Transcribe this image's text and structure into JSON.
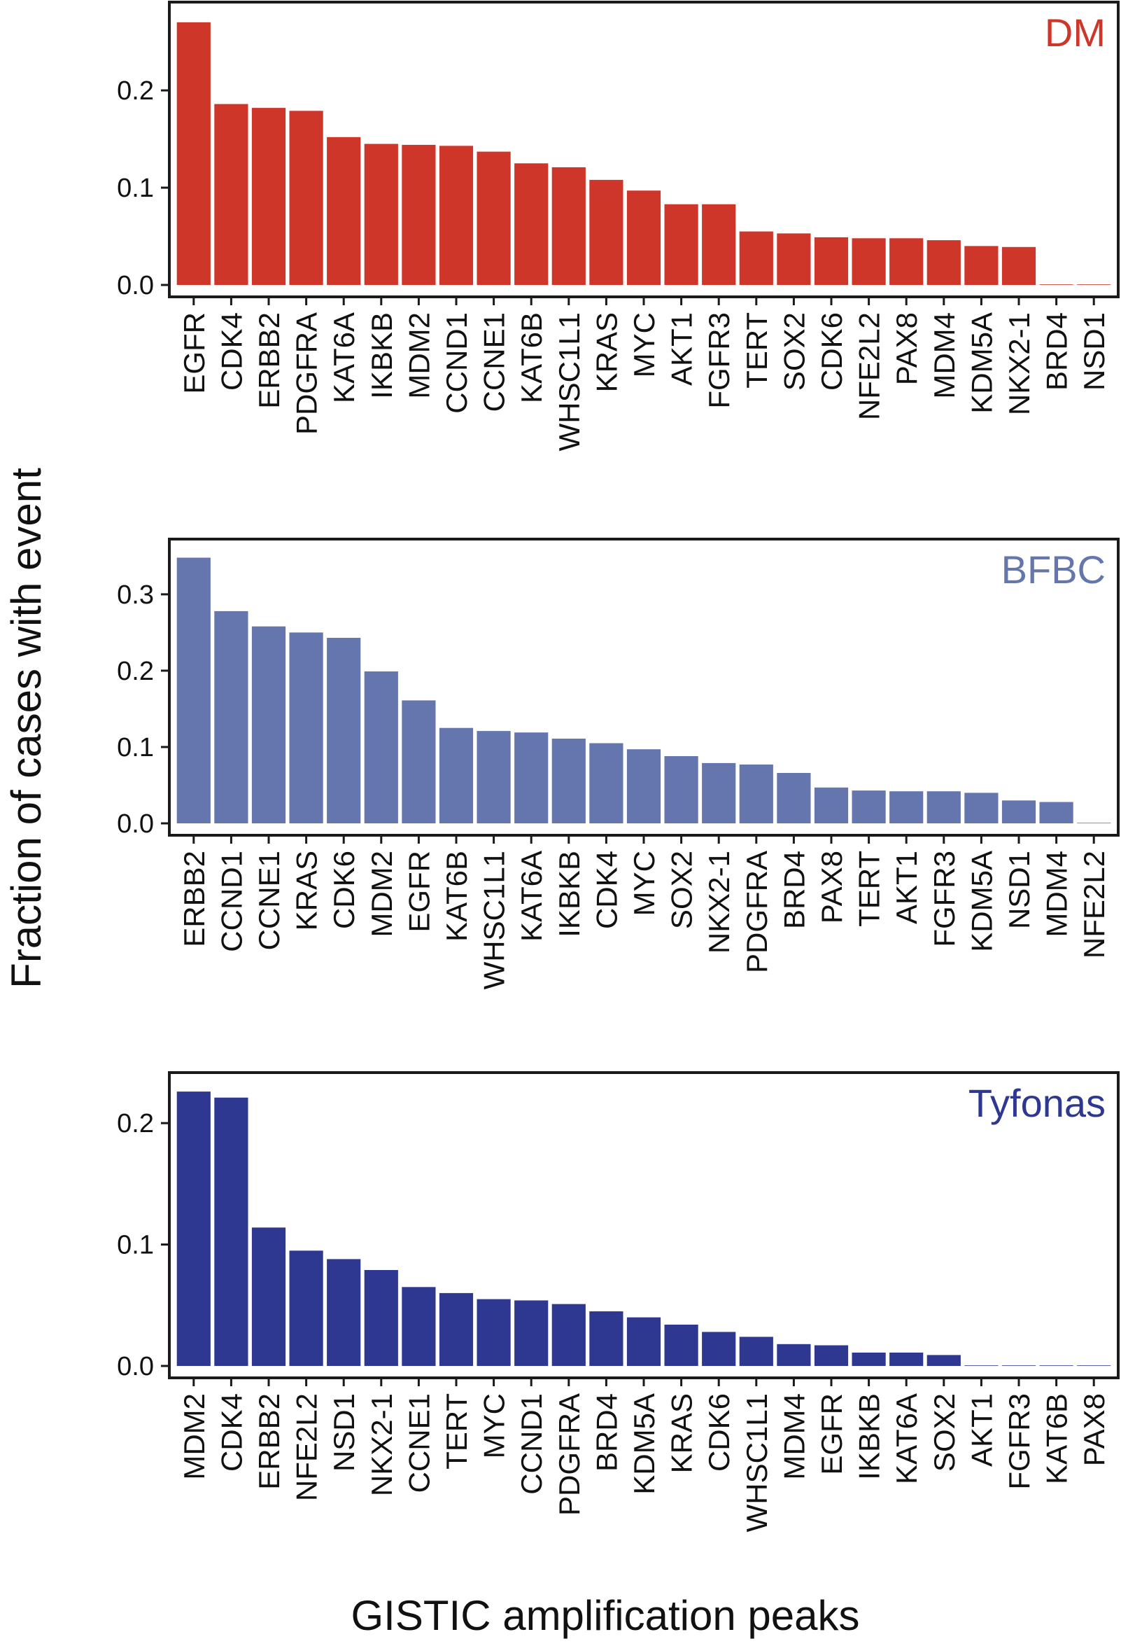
{
  "figure": {
    "ylabel": "Fraction of cases with event",
    "xlabel": "GISTIC amplification peaks"
  },
  "chart_data": [
    {
      "type": "bar",
      "panel_label": "DM",
      "color": "#cd3629",
      "categories": [
        "EGFR",
        "CDK4",
        "ERBB2",
        "PDGFRA",
        "KAT6A",
        "IKBKB",
        "MDM2",
        "CCND1",
        "CCNE1",
        "KAT6B",
        "WHSC1L1",
        "KRAS",
        "MYC",
        "AKT1",
        "FGFR3",
        "TERT",
        "SOX2",
        "CDK6",
        "NFE2L2",
        "PAX8",
        "MDM4",
        "KDM5A",
        "NKX2-1",
        "BRD4",
        "NSD1"
      ],
      "values": [
        0.27,
        0.186,
        0.182,
        0.179,
        0.152,
        0.145,
        0.144,
        0.143,
        0.137,
        0.125,
        0.121,
        0.108,
        0.097,
        0.083,
        0.083,
        0.055,
        0.053,
        0.049,
        0.048,
        0.048,
        0.046,
        0.04,
        0.039,
        0.0,
        0.0
      ],
      "yticks": [
        "0.0",
        "0.1",
        "0.2"
      ],
      "ylim": [
        0,
        0.285
      ],
      "xlabel": "",
      "ylabel": "Fraction of cases with event",
      "grid": false
    },
    {
      "type": "bar",
      "panel_label": "BFBC",
      "color": "#6476ad",
      "categories": [
        "ERBB2",
        "CCND1",
        "CCNE1",
        "KRAS",
        "CDK6",
        "MDM2",
        "EGFR",
        "KAT6B",
        "WHSC1L1",
        "KAT6A",
        "IKBKB",
        "CDK4",
        "MYC",
        "SOX2",
        "NKX2-1",
        "PDGFRA",
        "BRD4",
        "PAX8",
        "TERT",
        "AKT1",
        "FGFR3",
        "KDM5A",
        "NSD1",
        "MDM4",
        "NFE2L2"
      ],
      "values": [
        0.348,
        0.278,
        0.258,
        0.25,
        0.243,
        0.199,
        0.161,
        0.125,
        0.121,
        0.119,
        0.111,
        0.105,
        0.097,
        0.088,
        0.079,
        0.077,
        0.066,
        0.047,
        0.043,
        0.042,
        0.042,
        0.04,
        0.03,
        0.028,
        0.0
      ],
      "yticks": [
        "0.0",
        "0.1",
        "0.2",
        "0.3"
      ],
      "ylim": [
        0,
        0.365
      ],
      "xlabel": "",
      "ylabel": "Fraction of cases with event",
      "grid": false
    },
    {
      "type": "bar",
      "panel_label": "Tyfonas",
      "color": "#2e3890",
      "categories": [
        "MDM2",
        "CDK4",
        "ERBB2",
        "NFE2L2",
        "NSD1",
        "NKX2-1",
        "CCNE1",
        "TERT",
        "MYC",
        "CCND1",
        "PDGFRA",
        "BRD4",
        "KDM5A",
        "KRAS",
        "CDK6",
        "WHSC1L1",
        "MDM4",
        "EGFR",
        "IKBKB",
        "KAT6A",
        "SOX2",
        "AKT1",
        "FGFR3",
        "KAT6B",
        "PAX8"
      ],
      "values": [
        0.226,
        0.221,
        0.114,
        0.095,
        0.088,
        0.079,
        0.065,
        0.06,
        0.055,
        0.054,
        0.051,
        0.045,
        0.04,
        0.034,
        0.028,
        0.024,
        0.018,
        0.017,
        0.011,
        0.011,
        0.009,
        0.0,
        0.0,
        0.0,
        0.0
      ],
      "yticks": [
        "0.0",
        "0.1",
        "0.2"
      ],
      "ylim": [
        0,
        0.237
      ],
      "xlabel": "GISTIC amplification peaks",
      "ylabel": "Fraction of cases with event",
      "grid": false
    }
  ]
}
